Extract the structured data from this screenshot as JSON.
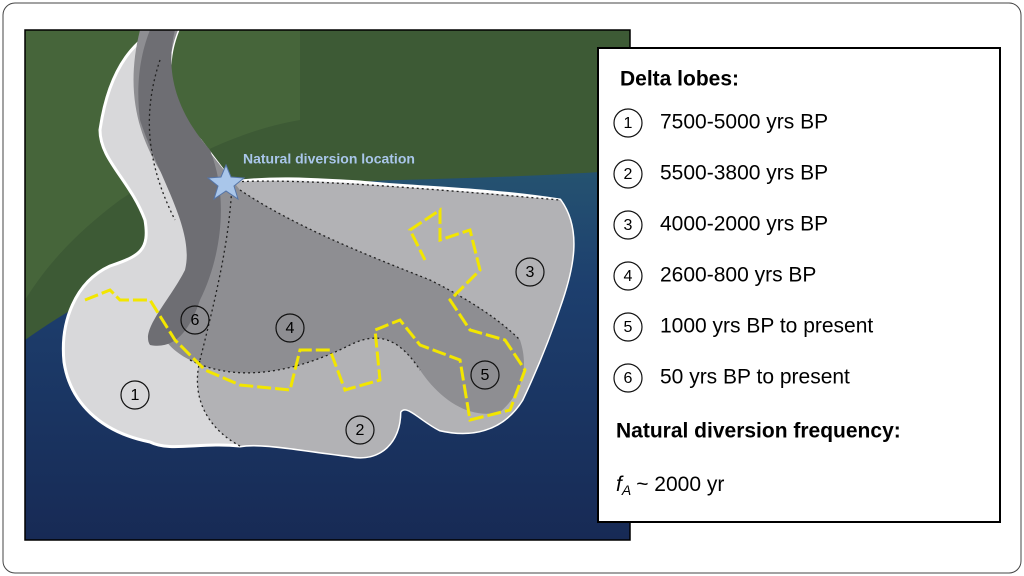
{
  "map": {
    "diversion_label": "Natural diversion location",
    "lobe_labels": [
      "1",
      "2",
      "3",
      "4",
      "5",
      "6"
    ]
  },
  "legend": {
    "title": "Delta lobes:",
    "items": [
      {
        "number": "1",
        "text": "7500-5000 yrs BP"
      },
      {
        "number": "2",
        "text": "5500-3800 yrs BP"
      },
      {
        "number": "3",
        "text": "4000-2000 yrs BP"
      },
      {
        "number": "4",
        "text": "2600-800 yrs BP"
      },
      {
        "number": "5",
        "text": "1000 yrs BP to present"
      },
      {
        "number": "6",
        "text": "50 yrs BP to present"
      }
    ],
    "frequency_title": "Natural diversion frequency:",
    "formula": {
      "symbol": "f",
      "subscript": "A",
      "value": "~ 2000 yr"
    }
  }
}
